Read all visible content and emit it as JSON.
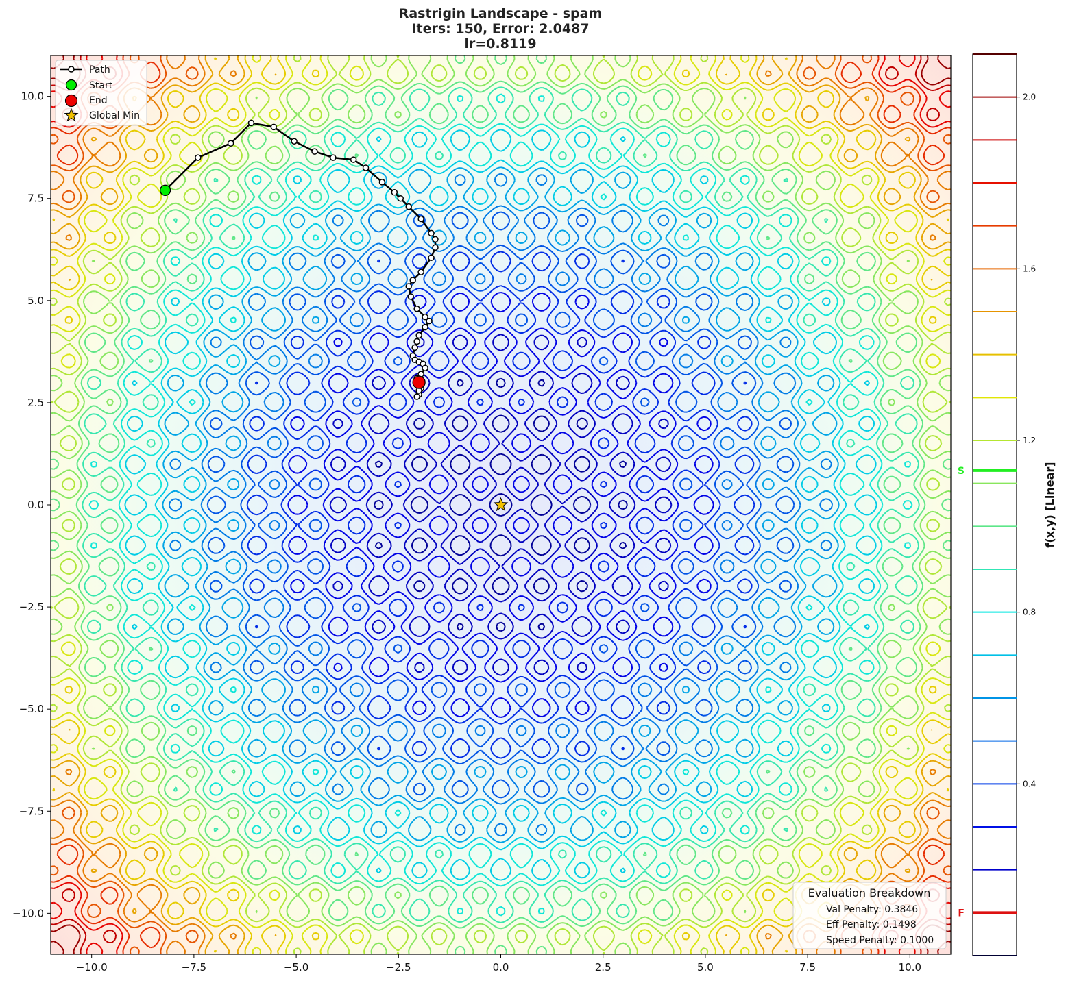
{
  "chart_data": {
    "type": "contour",
    "title_lines": [
      "Rastrigin Landscape - spam",
      "Iters: 150, Error: 2.0487",
      "lr=0.8119"
    ],
    "xlim": [
      -11,
      11
    ],
    "ylim": [
      -11,
      11
    ],
    "x_ticks": [
      -10,
      -7.5,
      -5,
      -2.5,
      0,
      2.5,
      5,
      7.5,
      10
    ],
    "x_tick_labels": [
      "−10.0",
      "−7.5",
      "−5.0",
      "−2.5",
      "0.0",
      "2.5",
      "5.0",
      "7.5",
      "10.0"
    ],
    "y_ticks": [
      10,
      7.5,
      5,
      2.5,
      0,
      -2.5,
      -5,
      -7.5,
      -10
    ],
    "y_tick_labels": [
      "10.0",
      "7.5",
      "5.0",
      "2.5",
      "0.0",
      "−2.5",
      "−5.0",
      "−7.5",
      "−10.0"
    ],
    "legend": {
      "position": "top-left",
      "entries": [
        {
          "label": "Path",
          "color": "#000000"
        },
        {
          "label": "Start",
          "color": "#00ee00"
        },
        {
          "label": "End",
          "color": "#ee0000"
        },
        {
          "label": "Global Min",
          "color": "#f0c000"
        }
      ]
    },
    "path": [
      [
        -8.2,
        7.7
      ],
      [
        -7.4,
        8.5
      ],
      [
        -6.6,
        8.85
      ],
      [
        -6.1,
        9.35
      ],
      [
        -5.55,
        9.25
      ],
      [
        -5.05,
        8.9
      ],
      [
        -4.55,
        8.65
      ],
      [
        -4.1,
        8.5
      ],
      [
        -3.6,
        8.45
      ],
      [
        -3.3,
        8.25
      ],
      [
        -2.9,
        7.9
      ],
      [
        -2.6,
        7.65
      ],
      [
        -2.45,
        7.5
      ],
      [
        -2.25,
        7.3
      ],
      [
        -1.95,
        7.0
      ],
      [
        -1.7,
        6.65
      ],
      [
        -1.6,
        6.5
      ],
      [
        -1.6,
        6.3
      ],
      [
        -1.7,
        6.05
      ],
      [
        -1.95,
        5.7
      ],
      [
        -2.15,
        5.5
      ],
      [
        -2.25,
        5.35
      ],
      [
        -2.2,
        5.1
      ],
      [
        -2.05,
        4.8
      ],
      [
        -1.85,
        4.6
      ],
      [
        -1.75,
        4.5
      ],
      [
        -1.85,
        4.35
      ],
      [
        -2.0,
        4.15
      ],
      [
        -2.05,
        4.0
      ],
      [
        -2.1,
        3.85
      ],
      [
        -2.15,
        3.65
      ],
      [
        -2.1,
        3.55
      ],
      [
        -2.0,
        3.5
      ],
      [
        -1.9,
        3.45
      ],
      [
        -1.85,
        3.35
      ],
      [
        -1.95,
        3.2
      ],
      [
        -2.05,
        3.1
      ],
      [
        -2.0,
        3.0
      ],
      [
        -1.95,
        2.85
      ],
      [
        -2.0,
        2.7
      ],
      [
        -2.05,
        2.65
      ],
      [
        -2.0,
        2.8
      ],
      [
        -2.0,
        3.0
      ]
    ],
    "start": [
      -8.2,
      7.7
    ],
    "end": [
      -2.0,
      3.0
    ],
    "global_min": [
      0,
      0
    ],
    "colorbar": {
      "label": "f(x,y) [Linear]",
      "range": [
        0.0,
        2.1
      ],
      "tick_values": [
        2.0,
        1.6,
        1.2,
        0.8,
        0.4
      ],
      "tick_labels": [
        "2.0",
        "1.6",
        "1.2",
        "0.8",
        "0.4"
      ],
      "markers": [
        {
          "label": "S",
          "value": 1.13,
          "color": "#22ee22"
        },
        {
          "label": "F",
          "value": 0.1,
          "color": "#dd1111"
        }
      ]
    },
    "evaluation": {
      "title": "Evaluation Breakdown",
      "lines": [
        "Val Penalty: 0.3846",
        "Eff Penalty: 0.1498",
        "Speed Penalty: 0.1000"
      ]
    }
  }
}
